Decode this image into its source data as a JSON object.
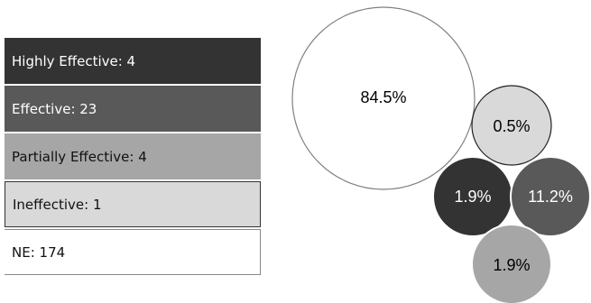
{
  "chart_data": {
    "type": "bubble",
    "legend": [
      {
        "label": "Highly Effective: 4",
        "category": "Highly Effective",
        "count": 4,
        "color": "#333333",
        "text_color": "#ffffff"
      },
      {
        "label": "Effective: 23",
        "category": "Effective",
        "count": 23,
        "color": "#595959",
        "text_color": "#ffffff"
      },
      {
        "label": "Partially Effective: 4",
        "category": "Partially Effective",
        "count": 4,
        "color": "#a6a6a6",
        "text_color": "#111111"
      },
      {
        "label": "Ineffective: 1",
        "category": "Ineffective",
        "count": 1,
        "color": "#d9d9d9",
        "text_color": "#111111"
      },
      {
        "label": "NE: 174",
        "category": "NE",
        "count": 174,
        "color": "#ffffff",
        "text_color": "#111111"
      }
    ],
    "bubbles": [
      {
        "category": "NE",
        "label": "84.5%",
        "value": 84.5,
        "color": "#ffffff",
        "text_color": "#000000"
      },
      {
        "category": "Ineffective",
        "label": "0.5%",
        "value": 0.5,
        "color": "#d9d9d9",
        "text_color": "#000000"
      },
      {
        "category": "Highly Effective",
        "label": "1.9%",
        "value": 1.9,
        "color": "#333333",
        "text_color": "#ffffff"
      },
      {
        "category": "Effective",
        "label": "11.2%",
        "value": 11.2,
        "color": "#595959",
        "text_color": "#ffffff"
      },
      {
        "category": "Partially Effective",
        "label": "1.9%",
        "value": 1.9,
        "color": "#a6a6a6",
        "text_color": "#000000"
      }
    ]
  }
}
